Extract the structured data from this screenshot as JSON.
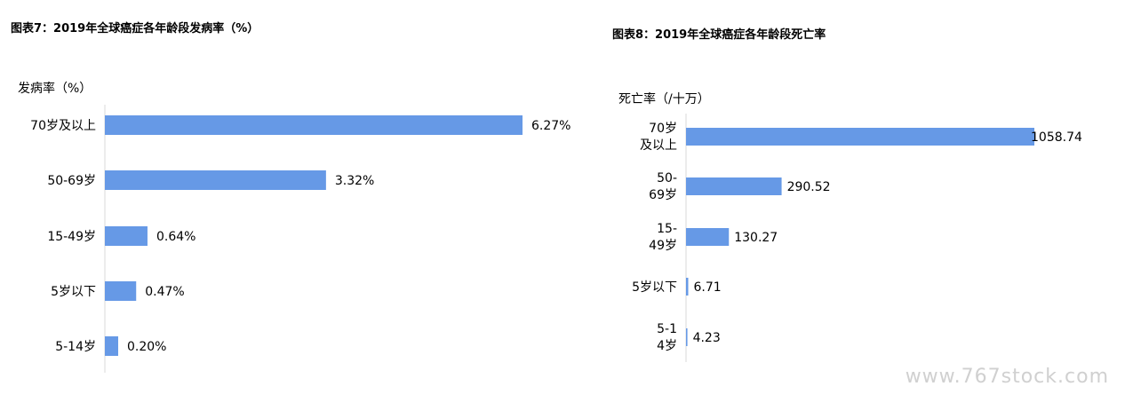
{
  "charts": [
    {
      "title": "图表7：2019年全球癌症各年龄段发病率（%）",
      "ylabel": "发病率（%）"
    },
    {
      "title": "图表8：2019年全球癌症各年龄段死亡率",
      "ylabel": "死亡率（/十万）"
    }
  ],
  "chart_data": [
    {
      "type": "bar",
      "orientation": "horizontal",
      "title": "图表7：2019年全球癌症各年龄段发病率（%）",
      "ylabel": "发病率（%）",
      "categories": [
        "70岁及以上",
        "50-69岁",
        "15-49岁",
        "5岁以下",
        "5-14岁"
      ],
      "values": [
        6.27,
        3.32,
        0.64,
        0.47,
        0.2
      ],
      "value_labels": [
        "6.27%",
        "3.32%",
        "0.64%",
        "0.47%",
        "0.20%"
      ],
      "xlim": [
        0,
        6.27
      ],
      "bar_color": "#6699e6",
      "grid": false,
      "legend": "none"
    },
    {
      "type": "bar",
      "orientation": "horizontal",
      "title": "图表8：2019年全球癌症各年龄段死亡率",
      "ylabel": "死亡率（/十万）",
      "categories": [
        "70岁及以上",
        "50-69岁",
        "15-49岁",
        "5岁以下",
        "5-14岁"
      ],
      "values": [
        1058.74,
        290.52,
        130.27,
        6.71,
        4.23
      ],
      "value_labels": [
        "1058.74",
        "290.52",
        "130.27",
        "6.71",
        "4.23"
      ],
      "xlim": [
        0,
        1058.74
      ],
      "bar_color": "#6699e6",
      "grid": false,
      "legend": "none"
    }
  ],
  "watermark": "www.767stock.com"
}
